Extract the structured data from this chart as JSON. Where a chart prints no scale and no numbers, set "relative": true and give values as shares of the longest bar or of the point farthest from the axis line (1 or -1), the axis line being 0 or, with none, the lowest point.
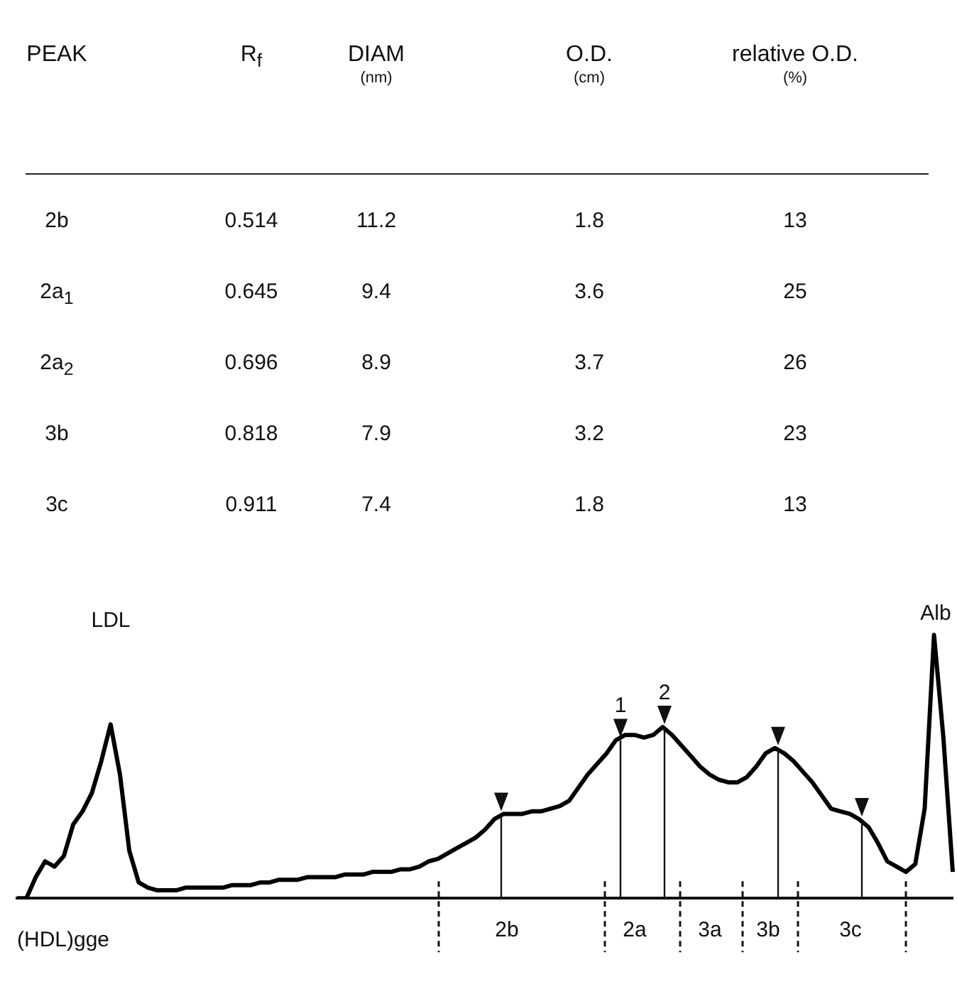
{
  "chart_data": {
    "type": "line",
    "relative": true,
    "color": "#000000",
    "marker": "none",
    "xlabel": "(HDL)gge",
    "categories": [
      null,
      null,
      null,
      null,
      null,
      null,
      null,
      null,
      null,
      null,
      null,
      null,
      null,
      null,
      null,
      null,
      null,
      null,
      null,
      null,
      null,
      null,
      null,
      null,
      null,
      null,
      null,
      null,
      null,
      null,
      null,
      null,
      null,
      null,
      null,
      null,
      null,
      null,
      null,
      null,
      null,
      null,
      null,
      null,
      null,
      null,
      null,
      null,
      null,
      null,
      null,
      null,
      null,
      null,
      null,
      null,
      null,
      null,
      null,
      null,
      null,
      null,
      null,
      null,
      null,
      null,
      null,
      null,
      null,
      null,
      null,
      null,
      null,
      null,
      null,
      null,
      null,
      null,
      null,
      null,
      null,
      null,
      null,
      null,
      null,
      null,
      null,
      null,
      null,
      null,
      null,
      null,
      null,
      null,
      null,
      null,
      null,
      null,
      null,
      null,
      null
    ],
    "values": [
      0.0,
      0.0,
      0.08,
      0.14,
      0.12,
      0.16,
      0.28,
      0.33,
      0.4,
      0.52,
      0.66,
      0.47,
      0.18,
      0.06,
      0.04,
      0.03,
      0.03,
      0.03,
      0.04,
      0.04,
      0.04,
      0.04,
      0.04,
      0.05,
      0.05,
      0.05,
      0.06,
      0.06,
      0.07,
      0.07,
      0.07,
      0.08,
      0.08,
      0.08,
      0.08,
      0.09,
      0.09,
      0.09,
      0.1,
      0.1,
      0.1,
      0.11,
      0.11,
      0.12,
      0.14,
      0.15,
      0.17,
      0.19,
      0.21,
      0.23,
      0.26,
      0.3,
      0.32,
      0.32,
      0.32,
      0.33,
      0.33,
      0.34,
      0.35,
      0.37,
      0.42,
      0.47,
      0.51,
      0.55,
      0.6,
      0.62,
      0.62,
      0.61,
      0.62,
      0.65,
      0.62,
      0.58,
      0.54,
      0.5,
      0.47,
      0.45,
      0.44,
      0.44,
      0.46,
      0.5,
      0.55,
      0.57,
      0.55,
      0.52,
      0.48,
      0.44,
      0.39,
      0.34,
      0.33,
      0.32,
      0.3,
      0.27,
      0.21,
      0.14,
      0.12,
      0.1,
      0.13,
      0.34,
      1.0,
      0.61,
      0.1
    ],
    "annotations": [
      "PEAK",
      "R$_{f}$",
      "DIAM\n(nm)",
      "O.D.\n(cm)",
      "relative O.D.\n(%)",
      "2b",
      "0.514",
      "11.2",
      "1.8",
      "13",
      "2a$_{1}$",
      "0.645",
      "9.4",
      "3.6",
      "25",
      "2a$_{2}$",
      "0.696",
      "8.9",
      "3.7",
      "26",
      "3b",
      "0.818",
      "7.9",
      "3.2",
      "23",
      "3c",
      "0.911",
      "7.4",
      "1.8",
      "13",
      "LDL",
      "Alb",
      "1",
      "2",
      "2b",
      "2a",
      "3a",
      "3b",
      "3c"
    ]
  }
}
